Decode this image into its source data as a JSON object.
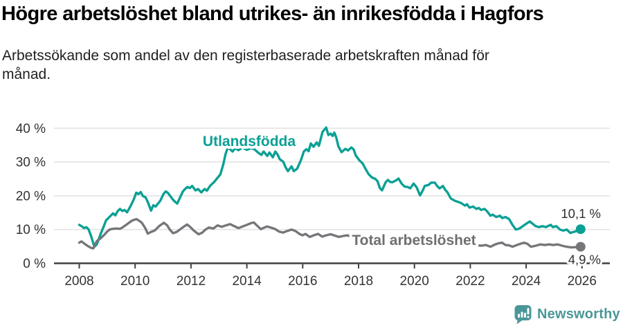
{
  "header": {
    "title": "Högre arbetslöshet bland utrikes- än inrikesfödda i Hagfors",
    "subtitle": "Arbetssökande som andel av den registerbaserade arbetskraften månad för månad."
  },
  "footer": {
    "brand": "Newsworthy",
    "brand_color": "#4a9798"
  },
  "chart_data": {
    "type": "line",
    "x_axis": {
      "ticks": [
        2008,
        2010,
        2012,
        2014,
        2016,
        2018,
        2020,
        2022,
        2024,
        2026
      ],
      "range": [
        2007.6,
        2026.5
      ]
    },
    "y_axis": {
      "ticks": [
        0,
        10,
        20,
        30,
        40
      ],
      "unit": "%",
      "range": [
        0,
        41
      ],
      "tick_suffix": " %"
    },
    "grid": "horizontal",
    "colors": {
      "utlandsfodda": "#0ba094",
      "total": "#76767a",
      "grid": "#e3e3e3",
      "axis": "#404040",
      "tick_text": "#333333",
      "value_text": "#2e2e2e"
    },
    "series": [
      {
        "id": "utlandsfodda",
        "name": "Utlandsfödda",
        "color": "#0ba094",
        "end_label": "10,1 %",
        "end_value": 10.1,
        "points": [
          [
            2008.0,
            11.4
          ],
          [
            2008.08,
            11.0
          ],
          [
            2008.17,
            10.4
          ],
          [
            2008.25,
            10.7
          ],
          [
            2008.33,
            10.1
          ],
          [
            2008.42,
            8.2
          ],
          [
            2008.54,
            4.9
          ],
          [
            2008.63,
            5.6
          ],
          [
            2008.76,
            8.6
          ],
          [
            2008.88,
            11.0
          ],
          [
            2008.96,
            12.7
          ],
          [
            2009.09,
            13.8
          ],
          [
            2009.21,
            14.8
          ],
          [
            2009.29,
            14.2
          ],
          [
            2009.38,
            15.5
          ],
          [
            2009.46,
            16.1
          ],
          [
            2009.54,
            15.5
          ],
          [
            2009.62,
            15.8
          ],
          [
            2009.71,
            15.1
          ],
          [
            2009.83,
            16.8
          ],
          [
            2009.95,
            18.9
          ],
          [
            2010.04,
            20.9
          ],
          [
            2010.12,
            20.5
          ],
          [
            2010.2,
            21.1
          ],
          [
            2010.28,
            19.9
          ],
          [
            2010.37,
            19.6
          ],
          [
            2010.45,
            18.2
          ],
          [
            2010.57,
            15.6
          ],
          [
            2010.65,
            17.2
          ],
          [
            2010.73,
            16.8
          ],
          [
            2010.9,
            18.5
          ],
          [
            2011.02,
            20.6
          ],
          [
            2011.1,
            21.3
          ],
          [
            2011.18,
            20.8
          ],
          [
            2011.26,
            19.9
          ],
          [
            2011.35,
            18.9
          ],
          [
            2011.43,
            18.2
          ],
          [
            2011.51,
            17.7
          ],
          [
            2011.63,
            19.9
          ],
          [
            2011.71,
            21.3
          ],
          [
            2011.79,
            22.0
          ],
          [
            2011.87,
            22.6
          ],
          [
            2011.96,
            22.3
          ],
          [
            2012.04,
            22.9
          ],
          [
            2012.16,
            21.6
          ],
          [
            2012.25,
            22.0
          ],
          [
            2012.37,
            21.0
          ],
          [
            2012.49,
            22.0
          ],
          [
            2012.57,
            21.5
          ],
          [
            2012.69,
            23.0
          ],
          [
            2012.82,
            24.0
          ],
          [
            2012.95,
            25.3
          ],
          [
            2013.05,
            26.3
          ],
          [
            2013.16,
            29.4
          ],
          [
            2013.24,
            32.4
          ],
          [
            2013.33,
            34.5
          ],
          [
            2013.42,
            33.6
          ],
          [
            2013.49,
            33.1
          ],
          [
            2013.58,
            34.1
          ],
          [
            2013.7,
            33.5
          ],
          [
            2013.85,
            34.3
          ],
          [
            2014.0,
            33.6
          ],
          [
            2014.15,
            34.1
          ],
          [
            2014.27,
            33.8
          ],
          [
            2014.4,
            32.8
          ],
          [
            2014.52,
            32.1
          ],
          [
            2014.6,
            33.1
          ],
          [
            2014.73,
            31.8
          ],
          [
            2014.81,
            32.8
          ],
          [
            2014.93,
            31.4
          ],
          [
            2015.02,
            33.1
          ],
          [
            2015.1,
            32.2
          ],
          [
            2015.18,
            30.8
          ],
          [
            2015.3,
            30.1
          ],
          [
            2015.39,
            28.4
          ],
          [
            2015.47,
            27.3
          ],
          [
            2015.6,
            28.7
          ],
          [
            2015.68,
            27.3
          ],
          [
            2015.8,
            28.0
          ],
          [
            2015.93,
            30.4
          ],
          [
            2016.04,
            33.1
          ],
          [
            2016.13,
            33.8
          ],
          [
            2016.21,
            33.2
          ],
          [
            2016.29,
            35.5
          ],
          [
            2016.39,
            34.5
          ],
          [
            2016.5,
            35.8
          ],
          [
            2016.58,
            34.8
          ],
          [
            2016.71,
            38.9
          ],
          [
            2016.84,
            40.2
          ],
          [
            2016.92,
            38.0
          ],
          [
            2017.0,
            38.4
          ],
          [
            2017.07,
            37.7
          ],
          [
            2017.13,
            38.7
          ],
          [
            2017.2,
            37.3
          ],
          [
            2017.28,
            34.6
          ],
          [
            2017.39,
            32.9
          ],
          [
            2017.46,
            33.4
          ],
          [
            2017.53,
            33.9
          ],
          [
            2017.62,
            33.4
          ],
          [
            2017.74,
            34.3
          ],
          [
            2017.82,
            33.8
          ],
          [
            2017.9,
            31.9
          ],
          [
            2018.03,
            30.5
          ],
          [
            2018.15,
            29.5
          ],
          [
            2018.24,
            28.1
          ],
          [
            2018.36,
            26.4
          ],
          [
            2018.48,
            25.4
          ],
          [
            2018.6,
            25.0
          ],
          [
            2018.68,
            24.3
          ],
          [
            2018.76,
            22.3
          ],
          [
            2018.84,
            21.6
          ],
          [
            2018.97,
            24.0
          ],
          [
            2019.05,
            24.7
          ],
          [
            2019.13,
            24.1
          ],
          [
            2019.21,
            24.0
          ],
          [
            2019.35,
            24.6
          ],
          [
            2019.43,
            25.1
          ],
          [
            2019.55,
            23.5
          ],
          [
            2019.65,
            22.7
          ],
          [
            2019.76,
            22.6
          ],
          [
            2019.85,
            22.2
          ],
          [
            2019.97,
            23.6
          ],
          [
            2020.08,
            22.5
          ],
          [
            2020.2,
            20.1
          ],
          [
            2020.3,
            21.6
          ],
          [
            2020.37,
            22.9
          ],
          [
            2020.5,
            23.2
          ],
          [
            2020.6,
            23.9
          ],
          [
            2020.73,
            23.9
          ],
          [
            2020.82,
            22.8
          ],
          [
            2020.9,
            22.2
          ],
          [
            2021.02,
            22.9
          ],
          [
            2021.1,
            21.8
          ],
          [
            2021.19,
            20.9
          ],
          [
            2021.3,
            19.2
          ],
          [
            2021.45,
            18.5
          ],
          [
            2021.56,
            18.2
          ],
          [
            2021.68,
            17.8
          ],
          [
            2021.81,
            17.1
          ],
          [
            2021.88,
            17.5
          ],
          [
            2021.97,
            16.5
          ],
          [
            2022.1,
            16.8
          ],
          [
            2022.22,
            16.1
          ],
          [
            2022.3,
            16.4
          ],
          [
            2022.39,
            15.8
          ],
          [
            2022.51,
            16.1
          ],
          [
            2022.6,
            15.4
          ],
          [
            2022.72,
            14.1
          ],
          [
            2022.8,
            14.4
          ],
          [
            2022.93,
            13.7
          ],
          [
            2023.06,
            14.1
          ],
          [
            2023.14,
            13.4
          ],
          [
            2023.26,
            13.7
          ],
          [
            2023.39,
            13.1
          ],
          [
            2023.51,
            11.4
          ],
          [
            2023.63,
            10.0
          ],
          [
            2023.76,
            10.3
          ],
          [
            2023.88,
            11.0
          ],
          [
            2024.0,
            11.7
          ],
          [
            2024.13,
            12.4
          ],
          [
            2024.25,
            11.6
          ],
          [
            2024.34,
            11.0
          ],
          [
            2024.46,
            10.7
          ],
          [
            2024.58,
            11.0
          ],
          [
            2024.71,
            10.7
          ],
          [
            2024.8,
            11.1
          ],
          [
            2024.88,
            11.4
          ],
          [
            2024.96,
            10.7
          ],
          [
            2025.08,
            11.0
          ],
          [
            2025.21,
            10.0
          ],
          [
            2025.33,
            9.7
          ],
          [
            2025.45,
            10.0
          ],
          [
            2025.58,
            9.0
          ],
          [
            2025.7,
            9.3
          ],
          [
            2025.83,
            9.6
          ],
          [
            2025.95,
            10.1
          ]
        ]
      },
      {
        "id": "total",
        "name": "Total arbetslöshet",
        "color": "#76767a",
        "end_label": "4,9 %",
        "end_value": 4.9,
        "points": [
          [
            2008.0,
            6.1
          ],
          [
            2008.08,
            6.5
          ],
          [
            2008.17,
            5.9
          ],
          [
            2008.29,
            5.2
          ],
          [
            2008.42,
            4.6
          ],
          [
            2008.5,
            4.4
          ],
          [
            2008.58,
            5.8
          ],
          [
            2008.63,
            6.6
          ],
          [
            2008.75,
            7.3
          ],
          [
            2008.88,
            8.3
          ],
          [
            2009.0,
            9.4
          ],
          [
            2009.09,
            10.0
          ],
          [
            2009.2,
            10.2
          ],
          [
            2009.33,
            10.3
          ],
          [
            2009.46,
            10.2
          ],
          [
            2009.58,
            10.8
          ],
          [
            2009.75,
            11.8
          ],
          [
            2009.9,
            12.7
          ],
          [
            2010.05,
            13.1
          ],
          [
            2010.16,
            12.5
          ],
          [
            2010.24,
            12.0
          ],
          [
            2010.37,
            10.3
          ],
          [
            2010.45,
            8.8
          ],
          [
            2010.57,
            9.3
          ],
          [
            2010.7,
            9.7
          ],
          [
            2010.86,
            11.0
          ],
          [
            2011.03,
            12.0
          ],
          [
            2011.15,
            11.2
          ],
          [
            2011.24,
            10.0
          ],
          [
            2011.36,
            8.9
          ],
          [
            2011.49,
            9.3
          ],
          [
            2011.65,
            10.3
          ],
          [
            2011.77,
            11.0
          ],
          [
            2011.86,
            11.5
          ],
          [
            2011.98,
            10.7
          ],
          [
            2012.1,
            9.7
          ],
          [
            2012.27,
            8.6
          ],
          [
            2012.39,
            9.0
          ],
          [
            2012.52,
            10.0
          ],
          [
            2012.64,
            10.6
          ],
          [
            2012.8,
            10.3
          ],
          [
            2012.95,
            11.2
          ],
          [
            2013.1,
            10.8
          ],
          [
            2013.25,
            11.2
          ],
          [
            2013.4,
            11.6
          ],
          [
            2013.55,
            11.0
          ],
          [
            2013.7,
            10.4
          ],
          [
            2013.85,
            10.9
          ],
          [
            2014.0,
            11.4
          ],
          [
            2014.15,
            11.9
          ],
          [
            2014.25,
            12.1
          ],
          [
            2014.4,
            10.9
          ],
          [
            2014.5,
            10.1
          ],
          [
            2014.6,
            10.5
          ],
          [
            2014.72,
            10.9
          ],
          [
            2014.85,
            10.6
          ],
          [
            2015.0,
            10.2
          ],
          [
            2015.15,
            9.4
          ],
          [
            2015.3,
            9.1
          ],
          [
            2015.45,
            9.6
          ],
          [
            2015.6,
            10.0
          ],
          [
            2015.75,
            9.5
          ],
          [
            2015.9,
            8.6
          ],
          [
            2016.0,
            8.3
          ],
          [
            2016.1,
            8.7
          ],
          [
            2016.25,
            7.8
          ],
          [
            2016.4,
            8.3
          ],
          [
            2016.55,
            8.7
          ],
          [
            2016.7,
            7.9
          ],
          [
            2016.85,
            8.3
          ],
          [
            2017.0,
            8.6
          ],
          [
            2017.15,
            8.2
          ],
          [
            2017.3,
            7.8
          ],
          [
            2017.45,
            8.1
          ],
          [
            2017.6,
            8.3
          ],
          [
            2017.75,
            7.8
          ],
          [
            2017.9,
            7.3
          ],
          [
            2018.1,
            6.8
          ],
          [
            2018.4,
            6.3
          ],
          [
            2018.7,
            6.0
          ],
          [
            2019.0,
            6.2
          ],
          [
            2019.4,
            6.0
          ],
          [
            2019.8,
            6.1
          ],
          [
            2020.1,
            6.6
          ],
          [
            2020.4,
            7.0
          ],
          [
            2020.7,
            6.8
          ],
          [
            2021.0,
            6.6
          ],
          [
            2021.4,
            6.2
          ],
          [
            2021.8,
            5.8
          ],
          [
            2022.1,
            5.5
          ],
          [
            2022.39,
            5.2
          ],
          [
            2022.56,
            5.4
          ],
          [
            2022.72,
            4.9
          ],
          [
            2022.89,
            5.6
          ],
          [
            2023.0,
            5.9
          ],
          [
            2023.14,
            6.1
          ],
          [
            2023.26,
            5.4
          ],
          [
            2023.39,
            5.3
          ],
          [
            2023.51,
            4.9
          ],
          [
            2023.67,
            5.4
          ],
          [
            2023.8,
            5.8
          ],
          [
            2023.92,
            6.1
          ],
          [
            2024.04,
            5.8
          ],
          [
            2024.17,
            4.9
          ],
          [
            2024.34,
            5.2
          ],
          [
            2024.5,
            5.6
          ],
          [
            2024.67,
            5.4
          ],
          [
            2024.83,
            5.6
          ],
          [
            2024.96,
            5.4
          ],
          [
            2025.13,
            5.6
          ],
          [
            2025.29,
            5.2
          ],
          [
            2025.45,
            4.9
          ],
          [
            2025.62,
            4.7
          ],
          [
            2025.8,
            4.8
          ],
          [
            2025.95,
            4.9
          ]
        ]
      }
    ]
  }
}
